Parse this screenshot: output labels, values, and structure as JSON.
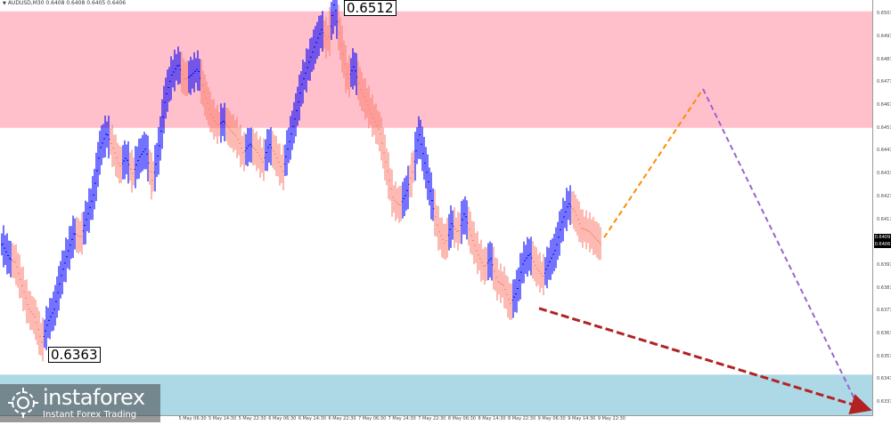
{
  "header": {
    "symbol_line": "AUDUSD,M30  0.6408 0.6408 0.6405 0.6406"
  },
  "colors": {
    "resistance_zone": "#ffc0cb",
    "support_zone": "#add8e6",
    "bull_bar": "#0000ff",
    "bear_bar": "#fa8072",
    "forecast_up": "#ff8c00",
    "forecast_down": "#9966cc",
    "forecast_alt": "#b22222"
  },
  "logo": {
    "brand": "instaforex",
    "tagline": "Instant Forex Trading"
  },
  "chart_data": {
    "type": "candlestick",
    "instrument": "AUDUSD",
    "timeframe": "M30",
    "ylim": [
      0.6331,
      0.6511
    ],
    "yticks": [
      "0.6507",
      "0.6497",
      "0.6487",
      "0.6477",
      "0.6467",
      "0.6457",
      "0.6447",
      "0.6437",
      "0.6427",
      "0.6417",
      "0.6407",
      "0.6397",
      "0.6387",
      "0.6377",
      "0.6367",
      "0.6357",
      "0.6347",
      "0.6337"
    ],
    "current_price": "0.6406",
    "current_price_alt": "0.6409",
    "xticks": [
      "5 May 06:30",
      "5 May 14:30",
      "5 May 22:30",
      "6 May 06:30",
      "6 May 14:30",
      "6 May 22:30",
      "7 May 06:30",
      "7 May 14:30",
      "7 May 22:30",
      "8 May 06:30",
      "8 May 14:30",
      "8 May 22:30",
      "9 May 06:30",
      "9 May 14:30",
      "9 May 22:30"
    ],
    "zones": [
      {
        "name": "resistance",
        "from": 0.6457,
        "to": 0.6508
      },
      {
        "name": "support",
        "from": 0.6331,
        "to": 0.6349
      }
    ],
    "annotations": [
      {
        "label": "0.6363",
        "price": 0.6363
      },
      {
        "label": "0.6512",
        "price": 0.6512
      }
    ],
    "forecast": [
      {
        "name": "up-leg",
        "points": [
          [
            0.6409
          ],
          [
            0.6474
          ]
        ],
        "style": "dashed"
      },
      {
        "name": "down-leg",
        "points": [
          [
            0.6474
          ],
          [
            0.6336
          ]
        ],
        "style": "dashed"
      },
      {
        "name": "alternative",
        "points": [
          [
            0.6378
          ],
          [
            0.6334
          ]
        ],
        "style": "dashed-arrow"
      }
    ],
    "waypoints": [
      [
        0.6406,
        0
      ],
      [
        0.64,
        0
      ],
      [
        0.6398,
        1
      ],
      [
        0.6388,
        1
      ],
      [
        0.6378,
        1
      ],
      [
        0.6374,
        1
      ],
      [
        0.6363,
        1
      ],
      [
        0.6372,
        0
      ],
      [
        0.6378,
        0
      ],
      [
        0.6392,
        0
      ],
      [
        0.6402,
        0
      ],
      [
        0.6411,
        0
      ],
      [
        0.6409,
        1
      ],
      [
        0.6418,
        0
      ],
      [
        0.6428,
        0
      ],
      [
        0.6448,
        0
      ],
      [
        0.6455,
        0
      ],
      [
        0.6448,
        1
      ],
      [
        0.644,
        1
      ],
      [
        0.6444,
        0
      ],
      [
        0.6437,
        1
      ],
      [
        0.6444,
        0
      ],
      [
        0.6448,
        0
      ],
      [
        0.6434,
        1
      ],
      [
        0.6447,
        0
      ],
      [
        0.647,
        0
      ],
      [
        0.648,
        0
      ],
      [
        0.6485,
        0
      ],
      [
        0.6478,
        1
      ],
      [
        0.648,
        0
      ],
      [
        0.6483,
        0
      ],
      [
        0.6472,
        1
      ],
      [
        0.6463,
        1
      ],
      [
        0.6458,
        1
      ],
      [
        0.646,
        0
      ],
      [
        0.6456,
        1
      ],
      [
        0.6453,
        1
      ],
      [
        0.6446,
        1
      ],
      [
        0.645,
        0
      ],
      [
        0.6447,
        1
      ],
      [
        0.6442,
        1
      ],
      [
        0.645,
        0
      ],
      [
        0.6445,
        1
      ],
      [
        0.6438,
        1
      ],
      [
        0.645,
        0
      ],
      [
        0.6462,
        0
      ],
      [
        0.6476,
        0
      ],
      [
        0.6485,
        0
      ],
      [
        0.6493,
        0
      ],
      [
        0.65,
        0
      ],
      [
        0.6495,
        1
      ],
      [
        0.6512,
        0
      ],
      [
        0.6494,
        1
      ],
      [
        0.6478,
        1
      ],
      [
        0.6484,
        0
      ],
      [
        0.6474,
        1
      ],
      [
        0.6468,
        1
      ],
      [
        0.6461,
        1
      ],
      [
        0.6455,
        1
      ],
      [
        0.644,
        1
      ],
      [
        0.6426,
        1
      ],
      [
        0.6423,
        1
      ],
      [
        0.6428,
        0
      ],
      [
        0.6438,
        1
      ],
      [
        0.6455,
        0
      ],
      [
        0.644,
        0
      ],
      [
        0.6425,
        0
      ],
      [
        0.6412,
        1
      ],
      [
        0.6406,
        1
      ],
      [
        0.6415,
        0
      ],
      [
        0.6411,
        1
      ],
      [
        0.642,
        0
      ],
      [
        0.641,
        1
      ],
      [
        0.6402,
        1
      ],
      [
        0.6396,
        1
      ],
      [
        0.64,
        0
      ],
      [
        0.639,
        1
      ],
      [
        0.6388,
        1
      ],
      [
        0.638,
        1
      ],
      [
        0.6385,
        0
      ],
      [
        0.6398,
        0
      ],
      [
        0.6402,
        0
      ],
      [
        0.6396,
        1
      ],
      [
        0.6392,
        1
      ],
      [
        0.6398,
        0
      ],
      [
        0.6404,
        0
      ],
      [
        0.6416,
        0
      ],
      [
        0.6424,
        0
      ],
      [
        0.642,
        1
      ],
      [
        0.6413,
        1
      ],
      [
        0.6412,
        1
      ],
      [
        0.6409,
        1
      ],
      [
        0.6406,
        1
      ]
    ]
  }
}
